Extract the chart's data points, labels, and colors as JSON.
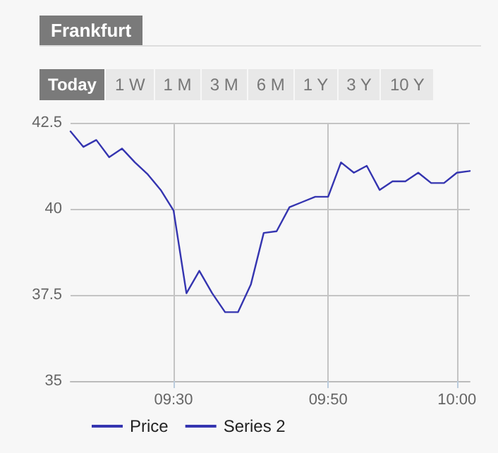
{
  "chart_data": {
    "type": "line",
    "categories": [
      null,
      null,
      null,
      null,
      null,
      null,
      null,
      null,
      "09:30",
      null,
      null,
      null,
      null,
      null,
      null,
      null,
      null,
      null,
      null,
      null,
      "09:50",
      null,
      null,
      null,
      null,
      null,
      null,
      null,
      null,
      null,
      "10:00",
      null
    ],
    "series": [
      {
        "name": "Price",
        "color": "#3535b0",
        "values": [
          42.25,
          41.8,
          42.0,
          41.5,
          41.75,
          41.35,
          41.0,
          40.55,
          39.95,
          37.55,
          38.2,
          37.55,
          37.0,
          37.0,
          37.8,
          39.3,
          39.35,
          40.05,
          40.2,
          40.35,
          40.35,
          41.35,
          41.05,
          41.25,
          40.55,
          40.8,
          40.8,
          41.05,
          40.75,
          40.75,
          41.05,
          41.1
        ]
      },
      {
        "name": "Series 2",
        "color": "#3535b0",
        "values": [
          null,
          null,
          null,
          null,
          null,
          null,
          null,
          null,
          null,
          null,
          null,
          null,
          null,
          null,
          null,
          null,
          null,
          null,
          null,
          null,
          null,
          null,
          null,
          null,
          null,
          null,
          null,
          null,
          null,
          null,
          null,
          null
        ]
      }
    ],
    "ylim": [
      35,
      42.5
    ],
    "yticks": [
      35,
      37.5,
      40,
      42.5
    ],
    "grid": true,
    "legend": "bottom left",
    "marker": "none",
    "line_style": "solid",
    "annotations": [
      "Frankfurt",
      "Today",
      "1 W",
      "1 M",
      "3 M",
      "6 M",
      "1 Y",
      "3 Y",
      "10 Y"
    ]
  }
}
